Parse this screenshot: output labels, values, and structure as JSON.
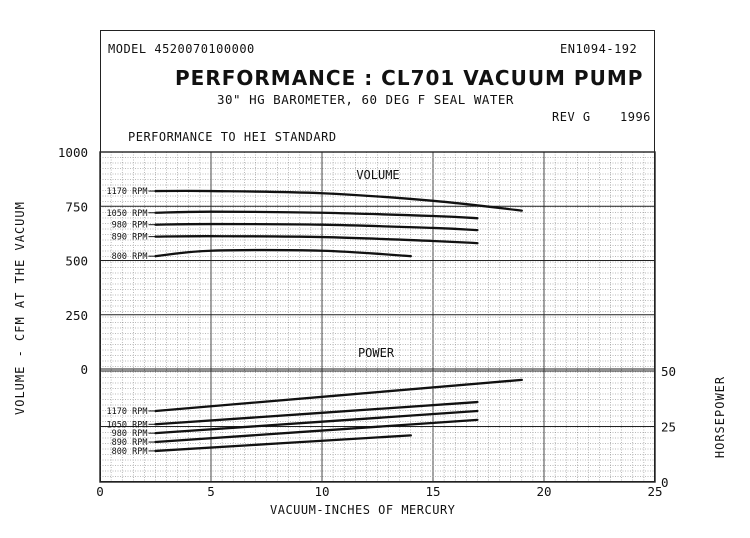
{
  "header": {
    "model": "MODEL 4520070100000",
    "doc_id": "EN1094-192",
    "title": "PERFORMANCE :  CL701  VACUUM  PUMP",
    "subtitle": "30\" HG BAROMETER,  60 DEG F SEAL WATER",
    "rev": "REV G",
    "year": "1996",
    "standard": "PERFORMANCE TO HEI STANDARD"
  },
  "chart_data": [
    {
      "type": "line",
      "title": "VOLUME",
      "xlabel": "VACUUM-INCHES OF MERCURY",
      "ylabel": "VOLUME - CFM AT THE VACUUM",
      "xlim": [
        0,
        25
      ],
      "ylim": [
        0,
        1000
      ],
      "x_ticks": [
        "0",
        "5",
        "10",
        "15",
        "20",
        "25"
      ],
      "y_ticks": [
        "0",
        "250",
        "500",
        "750",
        "1000"
      ],
      "grid": true,
      "series": [
        {
          "name": "1170 RPM",
          "x": [
            2.5,
            5,
            10,
            15,
            19
          ],
          "y": [
            820,
            820,
            810,
            775,
            730
          ]
        },
        {
          "name": "1050 RPM",
          "x": [
            2.5,
            5,
            10,
            15,
            17
          ],
          "y": [
            720,
            725,
            720,
            705,
            695
          ]
        },
        {
          "name": "980 RPM",
          "x": [
            2.5,
            5,
            10,
            15,
            17
          ],
          "y": [
            665,
            668,
            665,
            650,
            640
          ]
        },
        {
          "name": "890 RPM",
          "x": [
            2.5,
            5,
            10,
            15,
            17
          ],
          "y": [
            610,
            612,
            608,
            590,
            580
          ]
        },
        {
          "name": "800 RPM",
          "x": [
            2.5,
            5,
            10,
            14
          ],
          "y": [
            520,
            545,
            545,
            520
          ]
        }
      ]
    },
    {
      "type": "line",
      "title": "POWER",
      "xlabel": "VACUUM-INCHES OF MERCURY",
      "ylabel": "HORSEPOWER",
      "xlim": [
        0,
        25
      ],
      "ylim": [
        0,
        50
      ],
      "y_ticks": [
        "0",
        "25",
        "50"
      ],
      "grid": true,
      "series": [
        {
          "name": "1170 RPM",
          "x": [
            2.5,
            19
          ],
          "y": [
            32,
            46
          ]
        },
        {
          "name": "1050 RPM",
          "x": [
            2.5,
            17
          ],
          "y": [
            26,
            36
          ]
        },
        {
          "name": "980 RPM",
          "x": [
            2.5,
            17
          ],
          "y": [
            22,
            32
          ]
        },
        {
          "name": "890 RPM",
          "x": [
            2.5,
            17
          ],
          "y": [
            18,
            28
          ]
        },
        {
          "name": "800 RPM",
          "x": [
            2.5,
            14
          ],
          "y": [
            14,
            21
          ]
        }
      ]
    }
  ]
}
